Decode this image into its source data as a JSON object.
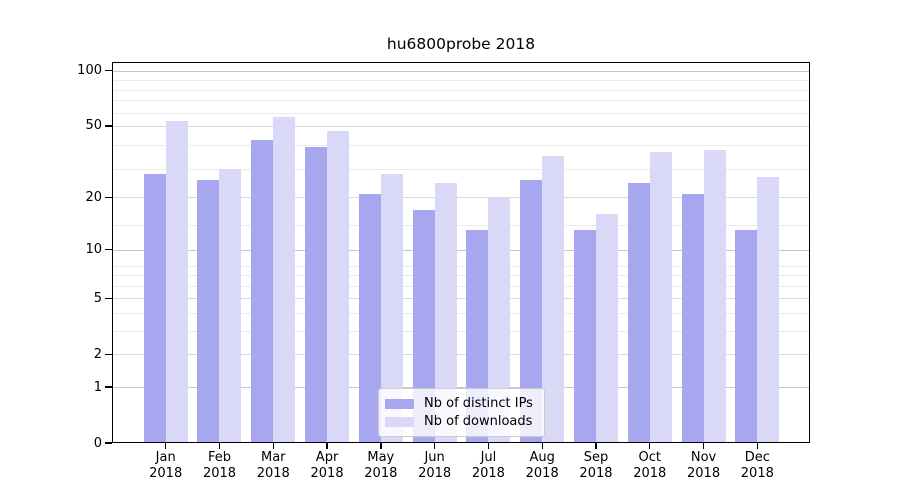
{
  "title": "hu6800probe 2018",
  "chart_data": {
    "type": "bar",
    "title": "hu6800probe 2018",
    "categories": [
      "Jan 2018",
      "Feb 2018",
      "Mar 2018",
      "Apr 2018",
      "May 2018",
      "Jun 2018",
      "Jul 2018",
      "Aug 2018",
      "Sep 2018",
      "Oct 2018",
      "Nov 2018",
      "Dec 2018"
    ],
    "series": [
      {
        "name": "Nb of distinct IPs",
        "color": "#a7a7f0",
        "values": [
          27,
          25,
          42,
          38,
          21,
          17,
          13,
          25,
          13,
          24,
          21,
          13
        ]
      },
      {
        "name": "Nb of downloads",
        "color": "#d9d9f7",
        "values": [
          53,
          29,
          56,
          47,
          27,
          24,
          20,
          34,
          16,
          36,
          37,
          26
        ]
      }
    ],
    "xlabel": "",
    "ylabel": "",
    "yscale": "log1p",
    "ylim": [
      0,
      111.5
    ],
    "yticks": [
      0,
      1,
      2,
      5,
      10,
      20,
      50,
      100
    ],
    "minor_gridlines": [
      3,
      4,
      6,
      7,
      8,
      14,
      29,
      39,
      59,
      69,
      79,
      89
    ],
    "grid": true,
    "legend_position": "lower center"
  },
  "colors": {
    "axis": "#000000",
    "background": "#ffffff",
    "grid_major": "#c6c6c6",
    "grid_mid": "#dadada",
    "grid_minor": "#ebebeb",
    "legend_border": "#cccccc"
  }
}
